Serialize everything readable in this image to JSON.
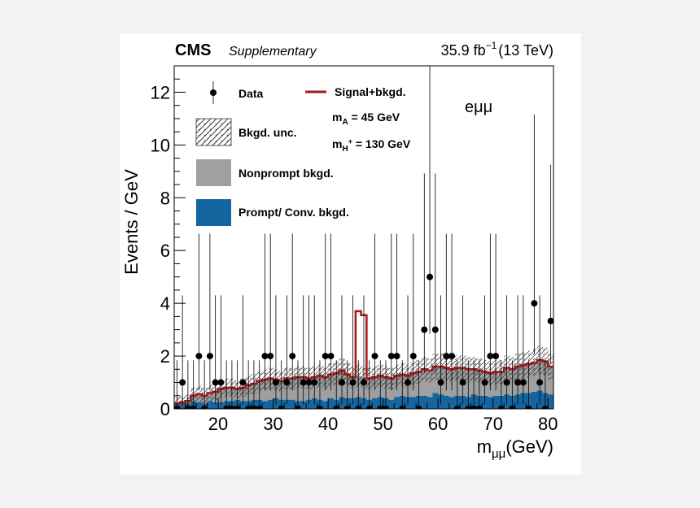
{
  "header": {
    "experiment": "CMS",
    "tag": "Supplementary",
    "lumi_value": "35.9 fb",
    "lumi_exp": "−1",
    "energy": "(13 TeV)"
  },
  "annotations": {
    "channel": "eμμ",
    "mass_a_main": "m",
    "mass_a_sub": "A",
    "mass_a_value": " = 45 GeV",
    "mass_h_main": "m",
    "mass_h_sub": "H",
    "mass_h_sup": "+",
    "mass_h_value": " = 130 GeV"
  },
  "legend": {
    "data": "Data",
    "signal": "Signal+bkgd.",
    "unc": "Bkgd. unc.",
    "nonprompt": "Nonprompt bkgd.",
    "prompt": "Prompt/ Conv. bkgd."
  },
  "colors": {
    "prompt": "#1565a0",
    "nonprompt": "#a0a0a0",
    "signal": "#a01818",
    "data": "#000000"
  },
  "chart_data": {
    "type": "bar",
    "xlabel_main": "m",
    "xlabel_sub": "μμ",
    "xlabel_unit": "(GeV)",
    "ylabel": "Events / GeV",
    "xlim": [
      12,
      81
    ],
    "ylim": [
      0,
      13
    ],
    "x_ticks": [
      20,
      30,
      40,
      50,
      60,
      70,
      80
    ],
    "y_ticks": [
      0,
      2,
      4,
      6,
      8,
      10,
      12
    ],
    "bin_edges": [
      12,
      13,
      14,
      15,
      16,
      17,
      18,
      19,
      20,
      21,
      22,
      23,
      24,
      25,
      26,
      27,
      28,
      29,
      30,
      31,
      32,
      33,
      34,
      35,
      36,
      37,
      38,
      39,
      40,
      41,
      42,
      43,
      44,
      45,
      46,
      47,
      48,
      49,
      50,
      51,
      52,
      53,
      54,
      55,
      56,
      57,
      58,
      59,
      60,
      61,
      62,
      63,
      64,
      65,
      66,
      67,
      68,
      69,
      70,
      71,
      72,
      73,
      74,
      75,
      76,
      77,
      78,
      79,
      80,
      81
    ],
    "series": [
      {
        "name": "Prompt/ Conv. bkgd.",
        "values": [
          0.2,
          0.25,
          0.2,
          0.3,
          0.25,
          0.2,
          0.3,
          0.25,
          0.25,
          0.3,
          0.3,
          0.35,
          0.3,
          0.3,
          0.35,
          0.35,
          0.3,
          0.35,
          0.4,
          0.35,
          0.35,
          0.35,
          0.3,
          0.3,
          0.35,
          0.4,
          0.35,
          0.3,
          0.4,
          0.35,
          0.45,
          0.4,
          0.4,
          0.45,
          0.4,
          0.35,
          0.4,
          0.45,
          0.4,
          0.35,
          0.45,
          0.5,
          0.45,
          0.45,
          0.5,
          0.5,
          0.45,
          0.6,
          0.55,
          0.5,
          0.45,
          0.5,
          0.5,
          0.45,
          0.55,
          0.5,
          0.5,
          0.45,
          0.5,
          0.5,
          0.55,
          0.5,
          0.55,
          0.6,
          0.6,
          0.65,
          0.7,
          0.6,
          0.55
        ]
      },
      {
        "name": "Nonprompt bkgd.",
        "values": [
          0.0,
          0.0,
          0.1,
          0.2,
          0.3,
          0.3,
          0.3,
          0.4,
          0.5,
          0.5,
          0.5,
          0.4,
          0.5,
          0.6,
          0.6,
          0.7,
          0.8,
          0.8,
          0.7,
          0.7,
          0.8,
          0.8,
          0.9,
          0.9,
          0.8,
          0.8,
          0.9,
          0.9,
          0.9,
          1.0,
          1.0,
          0.9,
          0.8,
          0.8,
          0.8,
          0.8,
          0.8,
          0.8,
          0.8,
          0.8,
          0.8,
          0.8,
          0.8,
          0.9,
          0.9,
          1.0,
          1.0,
          1.0,
          1.05,
          1.05,
          1.05,
          1.05,
          1.05,
          1.05,
          0.95,
          0.95,
          0.9,
          0.9,
          0.9,
          0.9,
          1.0,
          1.0,
          1.05,
          1.05,
          1.1,
          1.1,
          1.15,
          1.2,
          1.05
        ]
      }
    ],
    "signal_bkgd": [
      0.2,
      0.25,
      0.3,
      0.5,
      0.55,
      0.5,
      0.6,
      0.65,
      0.75,
      0.8,
      0.8,
      0.75,
      0.8,
      0.9,
      0.95,
      1.05,
      1.1,
      1.15,
      1.1,
      1.05,
      1.15,
      1.15,
      1.2,
      1.2,
      1.15,
      1.2,
      1.25,
      1.2,
      1.3,
      1.35,
      1.45,
      1.3,
      1.2,
      3.7,
      3.55,
      1.15,
      1.2,
      1.25,
      1.2,
      1.15,
      1.25,
      1.3,
      1.25,
      1.35,
      1.4,
      1.5,
      1.45,
      1.6,
      1.6,
      1.55,
      1.5,
      1.55,
      1.55,
      1.5,
      1.5,
      1.45,
      1.4,
      1.35,
      1.4,
      1.4,
      1.55,
      1.5,
      1.6,
      1.65,
      1.7,
      1.75,
      1.85,
      1.8,
      1.6
    ],
    "data_points": {
      "x": [
        12.5,
        13.5,
        14.5,
        15.5,
        16.5,
        17.5,
        18.5,
        19.5,
        20.5,
        21.5,
        22.5,
        23.5,
        24.5,
        25.5,
        26.5,
        27.5,
        28.5,
        29.5,
        30.5,
        31.5,
        32.5,
        33.5,
        34.5,
        35.5,
        36.5,
        37.5,
        38.5,
        39.5,
        40.5,
        41.5,
        42.5,
        43.5,
        44.5,
        45.5,
        46.5,
        47.5,
        48.5,
        49.5,
        50.5,
        51.5,
        52.5,
        53.5,
        54.5,
        55.5,
        56.5,
        57.5,
        58.5,
        59.5,
        60.5,
        61.5,
        62.5,
        63.5,
        64.5,
        65.5,
        66.5,
        67.5,
        68.5,
        69.5,
        70.5,
        71.5,
        72.5,
        73.5,
        74.5,
        75.5,
        76.5,
        77.5,
        78.5,
        79.5,
        80.5
      ],
      "y": [
        0,
        1,
        0,
        0,
        2,
        0,
        2,
        1,
        1,
        0,
        0,
        0,
        1,
        0,
        0,
        0,
        2,
        2,
        1,
        0,
        1,
        2,
        0,
        1,
        1,
        1,
        0,
        2,
        2,
        0,
        1,
        0,
        1,
        0,
        1,
        0,
        2,
        0,
        0,
        2,
        2,
        0,
        1,
        2,
        0,
        3,
        5,
        3,
        1,
        2,
        2,
        0,
        1,
        0,
        0,
        0,
        1,
        2,
        2,
        0,
        1,
        0,
        1,
        1,
        0,
        4,
        1,
        0,
        3.33
      ]
    }
  }
}
